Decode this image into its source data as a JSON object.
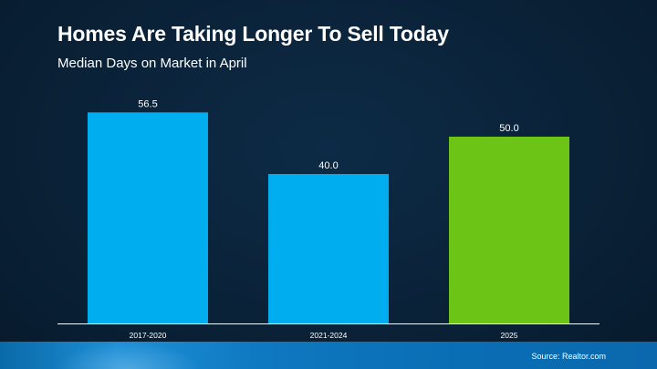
{
  "header": {
    "title": "Homes Are Taking Longer To Sell Today",
    "subtitle": "Median Days on Market in April"
  },
  "footer": {
    "source": "Source: Realtor.com"
  },
  "chart_data": {
    "type": "bar",
    "title": "Homes Are Taking Longer To Sell Today",
    "subtitle": "Median Days on Market in April",
    "categories": [
      "2017-2020",
      "2021-2024",
      "2025"
    ],
    "values": [
      56.5,
      40.0,
      50.0
    ],
    "value_labels": [
      "56.5",
      "40.0",
      "50.0"
    ],
    "bar_colors": [
      "#00aeef",
      "#00aeef",
      "#6cc417"
    ],
    "ylim": [
      0,
      60
    ],
    "grid": false,
    "legend": "none"
  }
}
